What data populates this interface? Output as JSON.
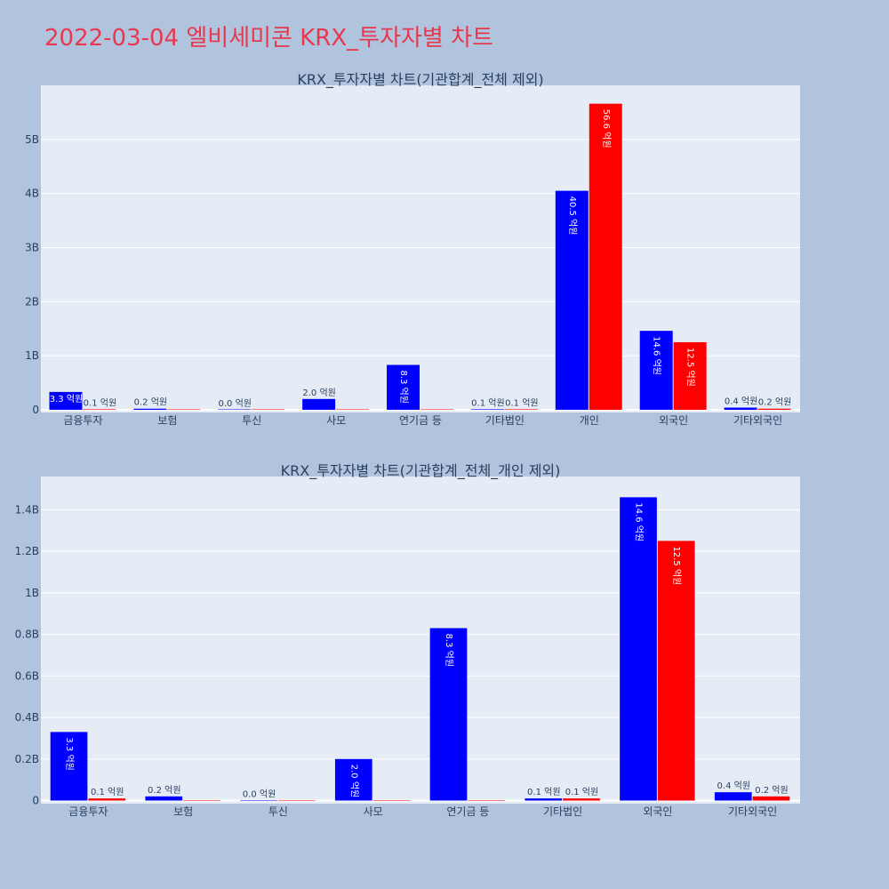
{
  "page": {
    "title": "2022-03-04 엘비세미콘 KRX_투자자별 차트"
  },
  "chart_data": [
    {
      "type": "bar",
      "title": "KRX_투자자별 차트(기관합계_전체 제외)",
      "categories": [
        "금융투자",
        "보험",
        "투신",
        "사모",
        "연기금 등",
        "기타법인",
        "개인",
        "외국인",
        "기타외국인"
      ],
      "series": [
        {
          "color": "#0000ff",
          "values": [
            0.33,
            0.02,
            0.0,
            0.2,
            0.83,
            0.01,
            4.05,
            1.46,
            0.04
          ],
          "labels": [
            "3.3 억원",
            "0.2 억원",
            "0.0 억원",
            "2.0 억원",
            "8.3 억원",
            "0.1 억원",
            "40.5 억원",
            "14.6 억원",
            "0.4 억원"
          ]
        },
        {
          "color": "#ff0000",
          "values": [
            0.01,
            0.0,
            0.0,
            0.0,
            0.0,
            0.01,
            5.66,
            1.25,
            0.02
          ],
          "labels": [
            "0.1 억원",
            "",
            "",
            "",
            "",
            "0.1 억원",
            "56.6 억원",
            "12.5 억원",
            "0.2 억원"
          ]
        }
      ],
      "yticks": [
        0,
        1,
        2,
        3,
        4,
        5
      ],
      "ytick_labels": [
        "0",
        "1B",
        "2B",
        "3B",
        "4B",
        "5B"
      ],
      "ylim": [
        -0.05,
        6.0
      ],
      "grid": true
    },
    {
      "type": "bar",
      "title": "KRX_투자자별 차트(기관합계_전체_개인 제외)",
      "categories": [
        "금융투자",
        "보험",
        "투신",
        "사모",
        "연기금 등",
        "기타법인",
        "외국인",
        "기타외국인"
      ],
      "series": [
        {
          "color": "#0000ff",
          "values": [
            0.33,
            0.02,
            0.0,
            0.2,
            0.83,
            0.01,
            1.46,
            0.04
          ],
          "labels": [
            "3.3 억원",
            "0.2 억원",
            "0.0 억원",
            "2.0 억원",
            "8.3 억원",
            "0.1 억원",
            "14.6 억원",
            "0.4 억원"
          ]
        },
        {
          "color": "#ff0000",
          "values": [
            0.01,
            0.0,
            0.0,
            0.0,
            0.0,
            0.01,
            1.25,
            0.02
          ],
          "labels": [
            "0.1 억원",
            "",
            "",
            "",
            "",
            "0.1 억원",
            "12.5 억원",
            "0.2 억원"
          ]
        }
      ],
      "yticks": [
        0,
        0.2,
        0.4,
        0.6,
        0.8,
        1.0,
        1.2,
        1.4
      ],
      "ytick_labels": [
        "0",
        "0.2B",
        "0.4B",
        "0.6B",
        "0.8B",
        "1B",
        "1.2B",
        "1.4B"
      ],
      "ylim": [
        -0.015,
        1.56
      ],
      "grid": true
    }
  ]
}
